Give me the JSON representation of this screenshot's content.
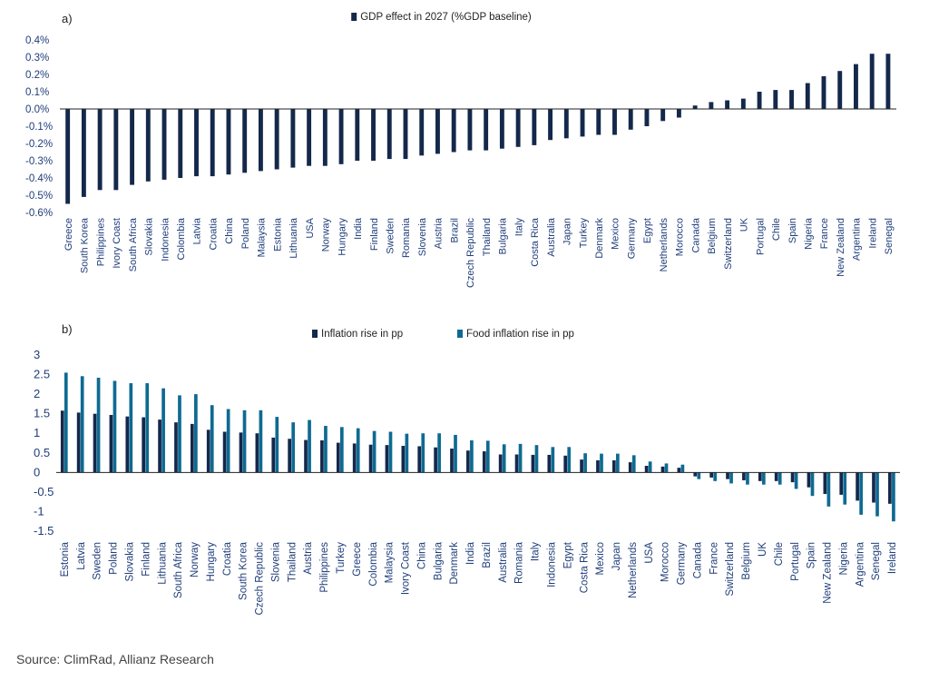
{
  "source": "Source: ClimRad, Allianz Research",
  "chart_data": [
    {
      "type": "bar",
      "panel_label": "a)",
      "series": [
        {
          "name": "GDP effect in 2027 (%GDP baseline)",
          "color": "#14284b",
          "values": [
            -0.55,
            -0.51,
            -0.47,
            -0.47,
            -0.44,
            -0.42,
            -0.41,
            -0.4,
            -0.39,
            -0.39,
            -0.38,
            -0.37,
            -0.36,
            -0.35,
            -0.34,
            -0.33,
            -0.33,
            -0.32,
            -0.3,
            -0.3,
            -0.29,
            -0.29,
            -0.27,
            -0.26,
            -0.25,
            -0.24,
            -0.24,
            -0.23,
            -0.22,
            -0.21,
            -0.18,
            -0.17,
            -0.16,
            -0.15,
            -0.15,
            -0.12,
            -0.1,
            -0.07,
            -0.05,
            0.02,
            0.04,
            0.05,
            0.06,
            0.1,
            0.11,
            0.11,
            0.15,
            0.19,
            0.22,
            0.26,
            0.32,
            0.32
          ]
        }
      ],
      "categories": [
        "Greece",
        "South Korea",
        "Philippines",
        "Ivory Coast",
        "South Africa",
        "Slovakia",
        "Indonesia",
        "Colombia",
        "Latvia",
        "Croatia",
        "China",
        "Poland",
        "Malaysia",
        "Estonia",
        "Lithuania",
        "USA",
        "Norway",
        "Hungary",
        "India",
        "Finland",
        "Sweden",
        "Romania",
        "Slovenia",
        "Austria",
        "Brazil",
        "Czech Republic",
        "Thailand",
        "Bulgaria",
        "Italy",
        "Costa Rica",
        "Australia",
        "Japan",
        "Turkey",
        "Denmark",
        "Mexico",
        "Germany",
        "Egypt",
        "Netherlands",
        "Morocco",
        "Canada",
        "Belgium",
        "Switzerland",
        "UK",
        "Portugal",
        "Chile",
        "Spain",
        "Nigeria",
        "France",
        "New Zealand",
        "Argentina",
        "Ireland",
        "Senegal"
      ],
      "ylim": [
        -0.6,
        0.4
      ],
      "yticks": [
        0.4,
        0.3,
        0.2,
        0.1,
        0.0,
        -0.1,
        -0.2,
        -0.3,
        -0.4,
        -0.5,
        -0.6
      ],
      "ytick_labels": [
        "0.4%",
        "0.3%",
        "0.2%",
        "0.1%",
        "0.0%",
        "-0.1%",
        "-0.2%",
        "-0.3%",
        "-0.4%",
        "-0.5%",
        "-0.6%"
      ],
      "legend_position": "top-center"
    },
    {
      "type": "bar",
      "panel_label": "b)",
      "categories": [
        "Estonia",
        "Latvia",
        "Sweden",
        "Poland",
        "Slovakia",
        "Finland",
        "Lithuania",
        "South Africa",
        "Norway",
        "Hungary",
        "Croatia",
        "South Korea",
        "Czech Republic",
        "Slovenia",
        "Thailand",
        "Austria",
        "Philippines",
        "Turkey",
        "Greece",
        "Colombia",
        "Malaysia",
        "Ivory Coast",
        "China",
        "Bulgaria",
        "Denmark",
        "India",
        "Brazil",
        "Australia",
        "Romania",
        "Italy",
        "Indonesia",
        "Egypt",
        "Costa Rica",
        "Mexico",
        "Japan",
        "Netherlands",
        "USA",
        "Morocco",
        "Germany",
        "Canada",
        "France",
        "Switzerland",
        "Belgium",
        "UK",
        "Chile",
        "Portugal",
        "Spain",
        "New Zealand",
        "Nigeria",
        "Argentina",
        "Senegal",
        "Ireland"
      ],
      "series": [
        {
          "name": "Inflation rise in pp",
          "color": "#14284b",
          "values": [
            1.58,
            1.53,
            1.5,
            1.47,
            1.43,
            1.41,
            1.35,
            1.28,
            1.24,
            1.09,
            1.04,
            1.02,
            1.0,
            0.89,
            0.86,
            0.83,
            0.82,
            0.76,
            0.74,
            0.71,
            0.7,
            0.68,
            0.67,
            0.64,
            0.61,
            0.56,
            0.54,
            0.46,
            0.46,
            0.45,
            0.45,
            0.43,
            0.33,
            0.31,
            0.31,
            0.26,
            0.17,
            0.15,
            0.12,
            -0.1,
            -0.13,
            -0.17,
            -0.2,
            -0.22,
            -0.22,
            -0.25,
            -0.38,
            -0.55,
            -0.57,
            -0.72,
            -0.77,
            -0.8
          ]
        },
        {
          "name": "Food inflation rise in pp",
          "color": "#0e6a92",
          "values": [
            2.55,
            2.46,
            2.42,
            2.34,
            2.28,
            2.28,
            2.15,
            1.97,
            2.0,
            1.72,
            1.62,
            1.59,
            1.59,
            1.42,
            1.28,
            1.34,
            1.19,
            1.16,
            1.13,
            1.06,
            1.04,
            0.99,
            1.0,
            1.0,
            0.96,
            0.82,
            0.81,
            0.72,
            0.73,
            0.7,
            0.65,
            0.65,
            0.49,
            0.48,
            0.48,
            0.44,
            0.28,
            0.23,
            0.2,
            -0.17,
            -0.22,
            -0.28,
            -0.31,
            -0.31,
            -0.31,
            -0.42,
            -0.6,
            -0.87,
            -0.82,
            -1.08,
            -1.12,
            -1.25
          ]
        }
      ],
      "ylim": [
        -1.5,
        3
      ],
      "yticks": [
        3,
        2.5,
        2,
        1.5,
        1,
        0.5,
        0,
        -0.5,
        -1,
        -1.5
      ],
      "ytick_labels": [
        "3",
        "2.5",
        "2",
        "1.5",
        "1",
        "0.5",
        "0",
        "-0.5",
        "-1",
        "-1.5"
      ],
      "legend_position": "top-center"
    }
  ]
}
